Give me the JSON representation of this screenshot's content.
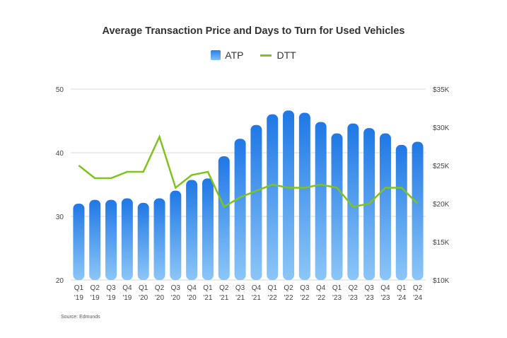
{
  "source": "Source: Edmunds",
  "colors": {
    "bar_top": "#1f78e6",
    "bar_bottom": "#8cc6f7",
    "line": "#7fc31c",
    "grid": "#d9d9d9"
  },
  "chart_data": {
    "type": "bar",
    "title": "Average Transaction Price and Days to Turn for Used Vehicles",
    "legend_position": "top",
    "grid": true,
    "categories": [
      [
        "Q1",
        "'19"
      ],
      [
        "Q2",
        "'19"
      ],
      [
        "Q3",
        "'19"
      ],
      [
        "Q4",
        "'19"
      ],
      [
        "Q1",
        "'20"
      ],
      [
        "Q2",
        "'20"
      ],
      [
        "Q3",
        "'20"
      ],
      [
        "Q4",
        "'20"
      ],
      [
        "Q1",
        "'21"
      ],
      [
        "Q2",
        "'21"
      ],
      [
        "Q3",
        "'21"
      ],
      [
        "Q4",
        "'21"
      ],
      [
        "Q1",
        "'22"
      ],
      [
        "Q2",
        "'22"
      ],
      [
        "Q3",
        "'22"
      ],
      [
        "Q4",
        "'22"
      ],
      [
        "Q1",
        "'23"
      ],
      [
        "Q2",
        "'23"
      ],
      [
        "Q3",
        "'23"
      ],
      [
        "Q4",
        "'23"
      ],
      [
        "Q1",
        "'24"
      ],
      [
        "Q2",
        "'24"
      ]
    ],
    "series": [
      {
        "name": "ATP",
        "type": "bar",
        "axis": "right",
        "values": [
          20000,
          20500,
          20500,
          20700,
          20100,
          20700,
          21700,
          23100,
          23300,
          26200,
          28500,
          30300,
          31700,
          32200,
          31900,
          30700,
          29200,
          30500,
          29900,
          29200,
          27700,
          28100
        ]
      },
      {
        "name": "DTT",
        "type": "line",
        "axis": "left",
        "values": [
          38.0,
          36.0,
          36.0,
          37.0,
          37.0,
          42.5,
          34.5,
          36.5,
          37.0,
          31.5,
          33.0,
          34.0,
          35.0,
          34.5,
          34.5,
          35.0,
          34.5,
          31.5,
          32.0,
          34.5,
          34.5,
          32.0
        ]
      }
    ],
    "y_left": {
      "min": 20,
      "max": 50,
      "ticks": [
        "20",
        "30",
        "40",
        "50"
      ]
    },
    "y_right": {
      "min": 10000,
      "max": 35000,
      "ticks": [
        "$10K",
        "$15K",
        "$20K",
        "$25K",
        "$30K",
        "$35K"
      ]
    }
  }
}
